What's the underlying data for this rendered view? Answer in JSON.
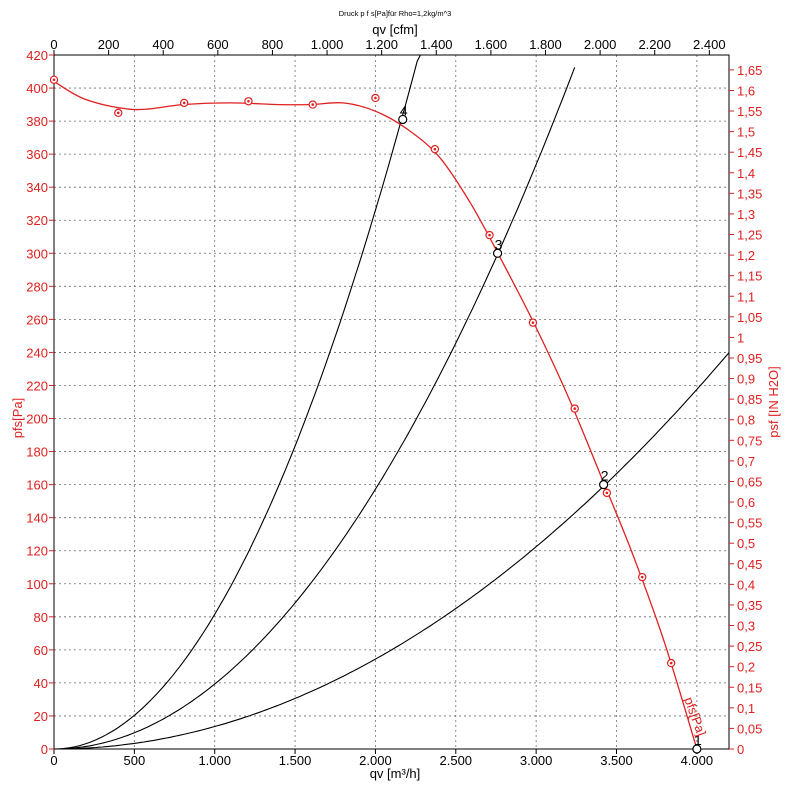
{
  "chart_data": {
    "type": "line",
    "title": "Druck p f s[Pa]für Rho=1,2kg/m^3",
    "xlabel": "qv [m³/h]",
    "xlabel_top": "qv [cfm]",
    "ylabel": "pfs[Pa]",
    "ylabel_right": "psf [IN H2O]",
    "xlim": [
      0,
      4200
    ],
    "ylim": [
      0,
      420
    ],
    "x_ticks": [
      0,
      500,
      1000,
      1500,
      2000,
      2500,
      3000,
      3500,
      4000
    ],
    "x_tick_labels": [
      "0",
      "500",
      "1.000",
      "1.500",
      "2.000",
      "2.500",
      "3.000",
      "3.500",
      "4.000"
    ],
    "top_x_ticks_cfm": [
      0,
      200,
      400,
      600,
      800,
      1000,
      1200,
      1400,
      1600,
      1800,
      2000,
      2200,
      2400
    ],
    "top_x_tick_labels": [
      "0",
      "200",
      "400",
      "600",
      "800",
      "1.000",
      "1.200",
      "1.400",
      "1.600",
      "1.800",
      "2.000",
      "2.200",
      "2.400"
    ],
    "cfm_per_m3h": 0.588578,
    "y_ticks": [
      0,
      20,
      40,
      60,
      80,
      100,
      120,
      140,
      160,
      180,
      200,
      220,
      240,
      260,
      280,
      300,
      320,
      340,
      360,
      380,
      400,
      420
    ],
    "y_tick_labels": [
      "0",
      "20",
      "40",
      "60",
      "80",
      "100",
      "120",
      "140",
      "160",
      "180",
      "200",
      "220",
      "240",
      "260",
      "280",
      "300",
      "320",
      "340",
      "360",
      "380",
      "400",
      "420"
    ],
    "right_y_ticks_inh2o": [
      0,
      0.05,
      0.1,
      0.15,
      0.2,
      0.25,
      0.3,
      0.35,
      0.4,
      0.45,
      0.5,
      0.55,
      0.6,
      0.65,
      0.7,
      0.75,
      0.8,
      0.85,
      0.9,
      0.95,
      1,
      1.05,
      1.1,
      1.15,
      1.2,
      1.25,
      1.3,
      1.35,
      1.4,
      1.45,
      1.5,
      1.55,
      1.6,
      1.65
    ],
    "right_y_tick_labels": [
      "0",
      "0,05",
      "0,1",
      "0,15",
      "0,2",
      "0,25",
      "0,3",
      "0,35",
      "0,4",
      "0,45",
      "0,5",
      "0,55",
      "0,6",
      "0,65",
      "0,7",
      "0,75",
      "0,8",
      "0,85",
      "0,9",
      "0,95",
      "1",
      "1,05",
      "1,1",
      "1,15",
      "1,2",
      "1,25",
      "1,3",
      "1,35",
      "1,4",
      "1,45",
      "1,5",
      "1,55",
      "1,6",
      "1,65"
    ],
    "pa_per_inh2o": 249.089,
    "fan_curve": {
      "name": "pfs[Pa]",
      "x": [
        0,
        200,
        500,
        800,
        1100,
        1400,
        1600,
        1800,
        2000,
        2200,
        2400,
        2600,
        2800,
        3000,
        3200,
        3400,
        3600,
        3800,
        4000
      ],
      "y": [
        404,
        393,
        387,
        390,
        391,
        390,
        390,
        391,
        386,
        375,
        358,
        329,
        293,
        255,
        213,
        166,
        118,
        64,
        0
      ]
    },
    "measured_points": {
      "name": "pfs[Pa] measured",
      "x": [
        0,
        400,
        810,
        1210,
        1610,
        2000,
        2370,
        2710,
        2980,
        3240,
        3440,
        3660,
        3840,
        4000
      ],
      "y": [
        405,
        385,
        391,
        392,
        390,
        394,
        363,
        311,
        258,
        206,
        155,
        104,
        52,
        0
      ]
    },
    "system_curves": [
      {
        "name": "system curve through point 4",
        "k_pa_per_m3h2": 8.15e-05,
        "x_max": 2285
      },
      {
        "name": "system curve through point 3",
        "k_pa_per_m3h2": 3.93e-05,
        "x_max": 3250
      },
      {
        "name": "system curve through point 2",
        "k_pa_per_m3h2": 1.36e-05,
        "x_max": 4200
      }
    ],
    "operating_points": [
      {
        "label": "1",
        "x": 4000,
        "y": 0
      },
      {
        "label": "2",
        "x": 3420,
        "y": 160
      },
      {
        "label": "3",
        "x": 2760,
        "y": 300
      },
      {
        "label": "4",
        "x": 2170,
        "y": 381
      }
    ],
    "curve_label": "pfs[Pa]"
  }
}
